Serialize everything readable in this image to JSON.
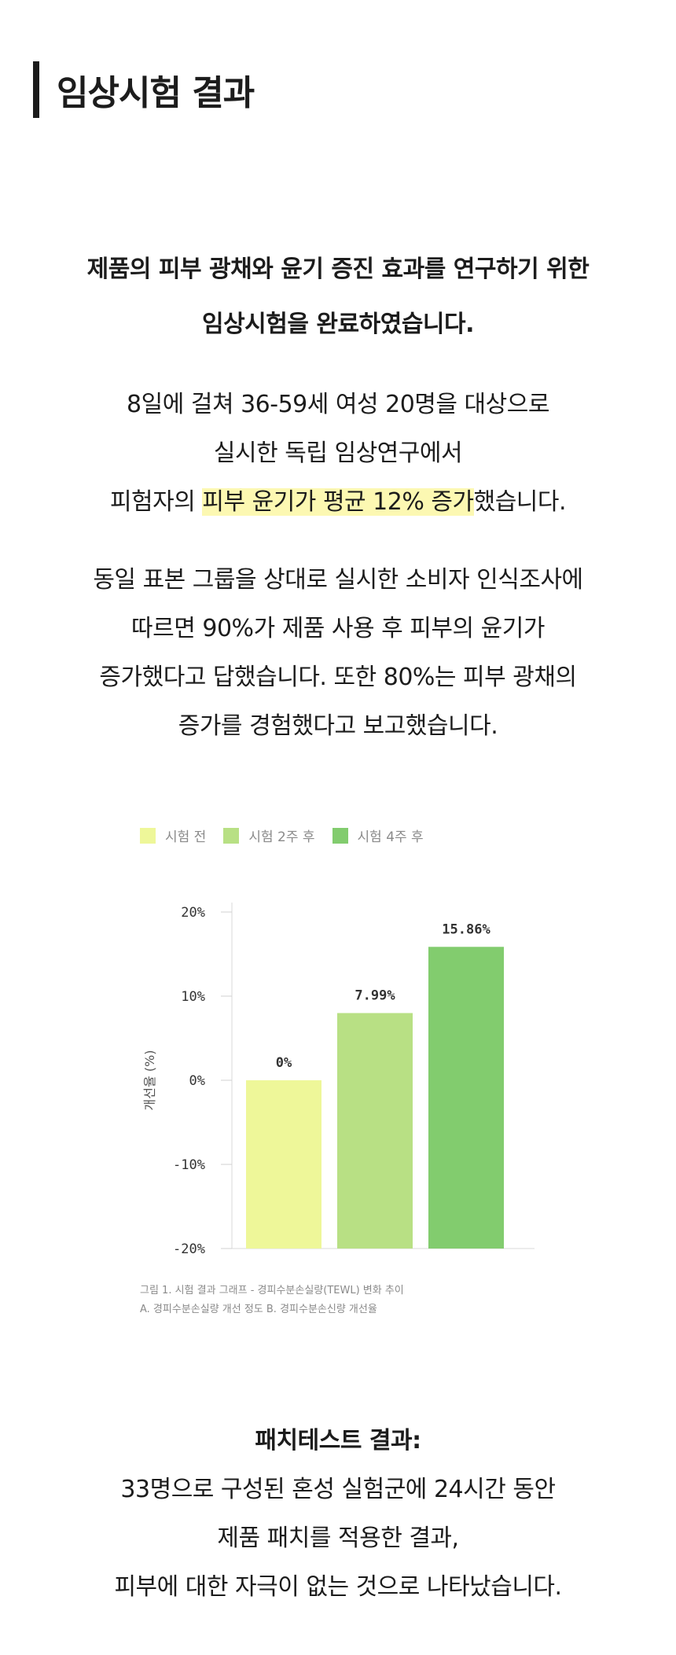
{
  "section": {
    "title": "임상시험 결과"
  },
  "intro": {
    "line1": "제품의 피부 광채와 윤기 증진 효과를 연구하기 위한",
    "line2": "임상시험을 완료하였습니다."
  },
  "study": {
    "line1": "8일에 걸쳐 36-59세 여성 20명을 대상으로",
    "line2": "실시한 독립 임상연구에서",
    "line3_pre": "피험자의 ",
    "line3_highlight": "피부 윤기가 평균 12% 증가",
    "line3_post": "했습니다."
  },
  "survey": {
    "line1": "동일 표본 그룹을 상대로 실시한 소비자 인식조사에",
    "line2": "따르면 90%가 제품 사용 후 피부의 윤기가",
    "line3": "증가했다고 답했습니다. 또한 80%는 피부 광채의",
    "line4": "증가를 경험했다고 보고했습니다."
  },
  "legend": [
    {
      "label": "시험 전",
      "color": "#eef799"
    },
    {
      "label": "시험 2주 후",
      "color": "#b8e084"
    },
    {
      "label": "시험 4주 후",
      "color": "#82cc6e"
    }
  ],
  "chart_data": {
    "type": "bar",
    "categories": [
      "시험 전",
      "시험 2주 후",
      "시험 4주 후"
    ],
    "values": [
      0,
      7.99,
      15.86
    ],
    "value_labels": [
      "0%",
      "7.99%",
      "15.86%"
    ],
    "colors": [
      "#eef799",
      "#b8e084",
      "#82cc6e"
    ],
    "ylabel": "개선율 (%)",
    "ylim": [
      -20,
      20
    ],
    "yticks": [
      20,
      10,
      0,
      -10,
      -20
    ],
    "ytick_labels": [
      "20%",
      "10%",
      "0%",
      "-10%",
      "-20%"
    ],
    "bar_base": -20,
    "grid": false,
    "legend": "top-left"
  },
  "caption": {
    "line1": "그림 1. 시험 결과 그래프 - 경피수분손실량(TEWL) 변화 추이",
    "line2": "A. 경피수분손실량 개선 정도  B. 경피수분손신량 개선율"
  },
  "patch": {
    "title": "패치테스트 결과:",
    "line1": "33명으로 구성된 혼성 실험군에 24시간 동안",
    "line2": "제품 패치를 적용한 결과,",
    "line3": "피부에 대한 자극이 없는 것으로 나타났습니다."
  }
}
